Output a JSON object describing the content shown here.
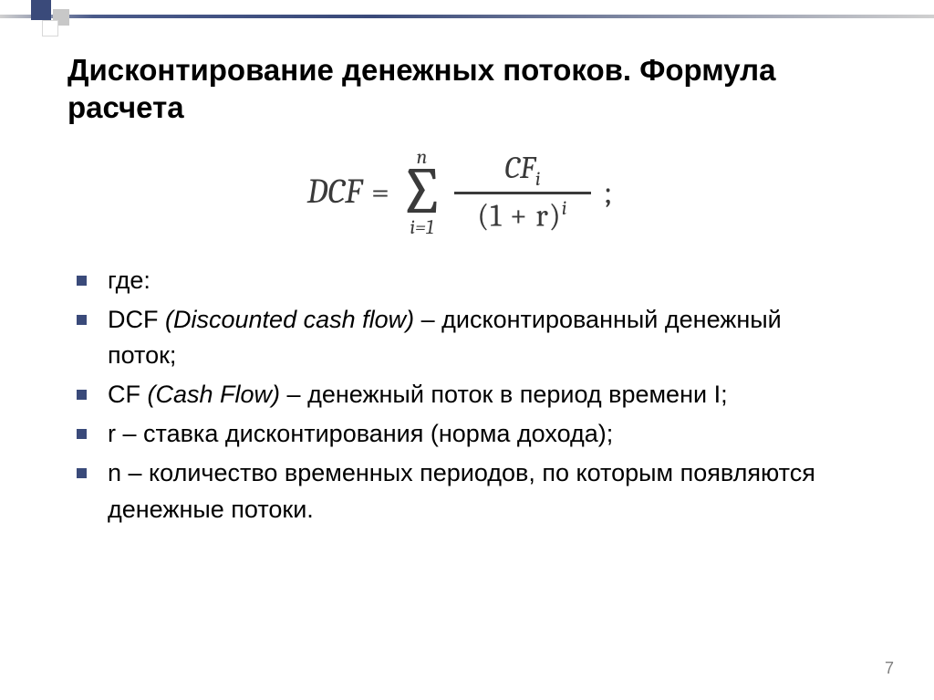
{
  "theme": {
    "accent": "#3a4a7a",
    "bullet_color": "#3a4a7a",
    "text_color": "#000000",
    "formula_color": "#3a3a3a",
    "page_num_color": "#808080",
    "bg_color": "#ffffff"
  },
  "title": "Дисконтирование денежных потоков. Формула расчета",
  "formula": {
    "lhs": "DCF",
    "eq": "=",
    "sigma_upper": "n",
    "sigma_lower": "i=1",
    "numerator_base": "CF",
    "numerator_sub": "i",
    "denominator": "(1 + r)",
    "denominator_sup": "i",
    "terminator": ";"
  },
  "bullets": {
    "b0": "где:",
    "b1_sym": "DCF",
    "b1_expan": "(Discounted cash flow)",
    "b1_rest": " – дисконтированный денежный поток;",
    "b2_sym": "CF",
    "b2_expan": "(Cash Flow)",
    "b2_rest": " – денежный поток в период времени I;",
    "b3": "r – ставка дисконтирования (норма дохода);",
    "b4": "n – количество временных периодов, по которым появляются денежные потоки."
  },
  "page_number": "7"
}
